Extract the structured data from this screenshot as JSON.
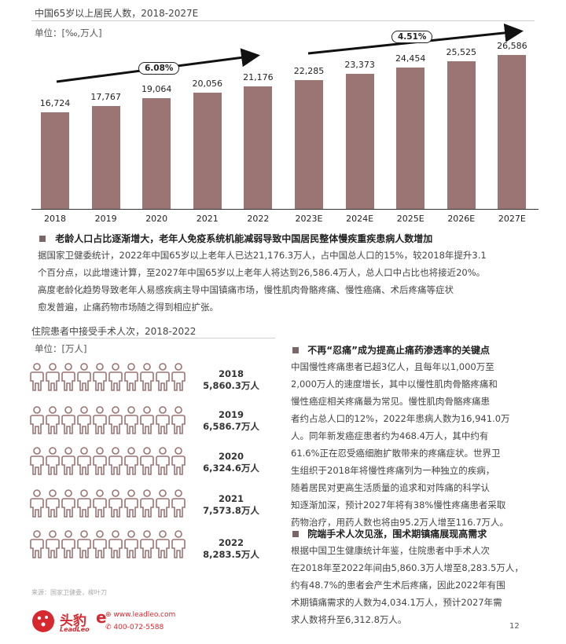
{
  "top_chart": {
    "title": "中国65岁以上居民人数，2018-2027E",
    "unit": "单位：[‰,万人]",
    "cagr_left": "6.08%",
    "cagr_right": "4.51%"
  },
  "chart_data": {
    "type": "bar",
    "categories": [
      "2018",
      "2019",
      "2020",
      "2021",
      "2022",
      "2023E",
      "2024E",
      "2025E",
      "2026E",
      "2027E"
    ],
    "values": [
      16724,
      17767,
      19064,
      20056,
      21176,
      22285,
      23373,
      24454,
      25525,
      26586
    ],
    "value_labels": [
      "16,724",
      "17,767",
      "19,064",
      "20,056",
      "21,176",
      "22,285",
      "23,373",
      "24,454",
      "25,525",
      "26,586"
    ],
    "bar_color": "#9b7474"
  },
  "section1": {
    "heading": "老龄人口占比逐渐增大，老年人免疫系统机能减弱导致中国居民整体慢疾重疾患病人数增加",
    "lines": [
      "据国家卫健委统计，2022年中国65岁以上老年人已达21,176.3万人，占中国总人口的15%，较2018年提升3.1",
      "个百分点，以此增速计算，至2027年中国65岁以上老年人将达到26,586.4万人，总人口中占比也将接近20%。",
      "高度老龄化趋势导致老年人易感疾病主导中国镇痛市场，慢性肌肉骨骼疼痛、慢性癌痛、术后疼痛等症状",
      "愈发普遍，止痛药物市场随之得到相应扩张。"
    ]
  },
  "surgery": {
    "title": "住院患者中接受手术人次，2018-2022",
    "unit": "单位：[万人]",
    "rows": [
      {
        "year": "2018",
        "value": "5,860.3万人"
      },
      {
        "year": "2019",
        "value": "6,586.7万人"
      },
      {
        "year": "2020",
        "value": "6,324.6万人"
      },
      {
        "year": "2021",
        "value": "7,573.8万人"
      },
      {
        "year": "2022",
        "value": "8,283.5万人"
      }
    ],
    "source": "来源：国家卫健委，柳叶刀"
  },
  "section2": {
    "heading": "不再“忍痛”成为提高止痛药渗透率的关键点",
    "lines": [
      "中国慢性疼痛患者已超3亿人，且每年以1,000万至",
      "2,000万人的速度增长，其中以慢性肌肉骨骼疼痛和",
      "慢性癌症相关疼痛最为常见。慢性肌肉骨骼疼痛患",
      "者约占总人口的12%，2022年患病人数为16,941.0万",
      "人。同年新发癌症患者约为468.4万人，其中约有",
      "61.6%正在忍受癌细胞扩散带来的疼痛症状。世界卫",
      "生组织于2018年将慢性疼痛列为一种独立的疾病，",
      "随着居民对更高生活质量的追求和对阵痛的科学认",
      "知逐渐加深，预计2027年将有38%慢性疼痛患者采取",
      "药物治疗，用药人数也将由95.2万人增至116.7万人。"
    ]
  },
  "section3": {
    "heading": "院端手术人次见涨，围术期镇痛展现高需求",
    "lines": [
      "根据中国卫生健康统计年鉴，住院患者中手术人次",
      "在2018年至2022年间由5,860.3万人增至8,283.5万人，",
      "约有48.7%的患者会产生术后疼痛，因此2022年有围",
      "术期镇痛需求的人数为4,034.1万人，预计2027年需",
      "求人数将升至6,312.8万人。"
    ]
  },
  "footer": {
    "logo_text": "头豹",
    "logo_sub": "LeadLeo",
    "website": "www.leadleo.com",
    "phone": "400-072-5588",
    "page_number": "12"
  },
  "colors": {
    "accent": "#9b7474",
    "square": "#7a6666",
    "logo_red": "#d7282f"
  }
}
